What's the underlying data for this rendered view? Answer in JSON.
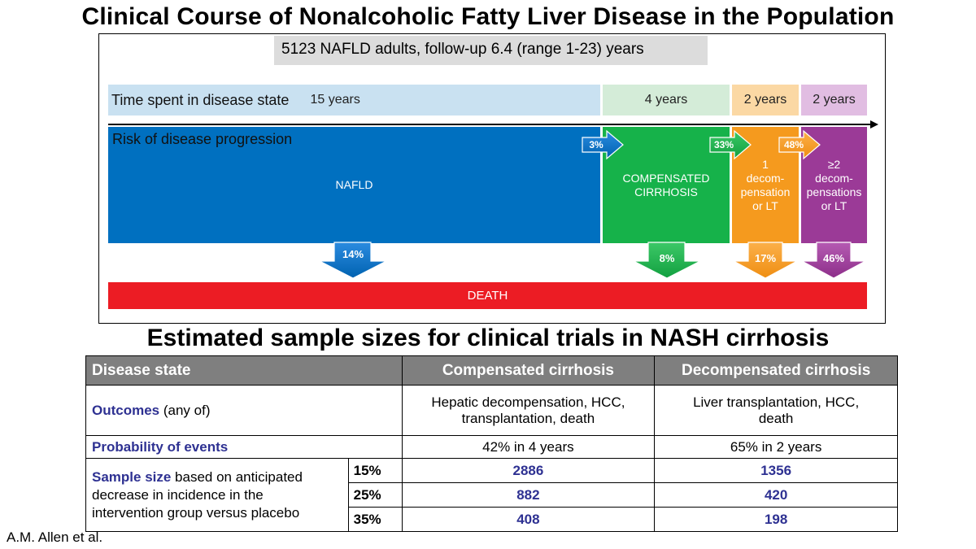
{
  "title": "Clinical Course of Nonalcoholic Fatty Liver Disease in the Population",
  "cohort": "5123 NAFLD adults, follow-up 6.4 (range 1-23) years",
  "time_label": "Time spent in disease state",
  "risk_label": "Risk of disease progression",
  "time_spent": [
    "15 years",
    "4 years",
    "2 years",
    "2 years"
  ],
  "states": {
    "nafld": "NAFLD",
    "compensated_line1": "COMPENSATED",
    "compensated_line2": "CIRRHOSIS",
    "one_decomp": [
      "1",
      "decom-",
      "pensation",
      "or LT"
    ],
    "two_decomp": [
      "≥2",
      "decom-",
      "pensations",
      "or LT"
    ],
    "death": "DEATH"
  },
  "progression": [
    "3%",
    "33%",
    "48%"
  ],
  "mortality": [
    "14%",
    "8%",
    "17%",
    "46%"
  ],
  "colors": {
    "nafld": "#0070c0",
    "compensated": "#16b24a",
    "one_decomp": "#f59a1e",
    "two_decomp": "#9b3a97",
    "death": "#ec1c24",
    "header": "#7f7f7f",
    "accent_text": "#2e3192"
  },
  "table_title": "Estimated sample sizes for clinical trials in NASH cirrhosis",
  "table": {
    "headers": [
      "Disease state",
      "Compensated cirrhosis",
      "Decompensated cirrhosis"
    ],
    "outcomes_label_bold": "Outcomes",
    "outcomes_label_rest": " (any of)",
    "outcomes_comp_line1": "Hepatic decompensation, HCC,",
    "outcomes_comp_line2": "transplantation, death",
    "outcomes_decomp_line1": "Liver transplantation, HCC,",
    "outcomes_decomp_line2": "death",
    "probability_label": "Probability of events",
    "probability_comp": "42% in 4 years",
    "probability_decomp": "65% in 2 years",
    "sample_label_bold": "Sample size",
    "sample_label_rest1": " based on anticipated",
    "sample_label_rest2": "decrease in incidence in the",
    "sample_label_rest3": "intervention group versus placebo",
    "rows": [
      {
        "pct": "15%",
        "comp": "2886",
        "decomp": "1356"
      },
      {
        "pct": "25%",
        "comp": "882",
        "decomp": "420"
      },
      {
        "pct": "35%",
        "comp": "408",
        "decomp": "198"
      }
    ]
  },
  "credit": "A.M. Allen et al."
}
